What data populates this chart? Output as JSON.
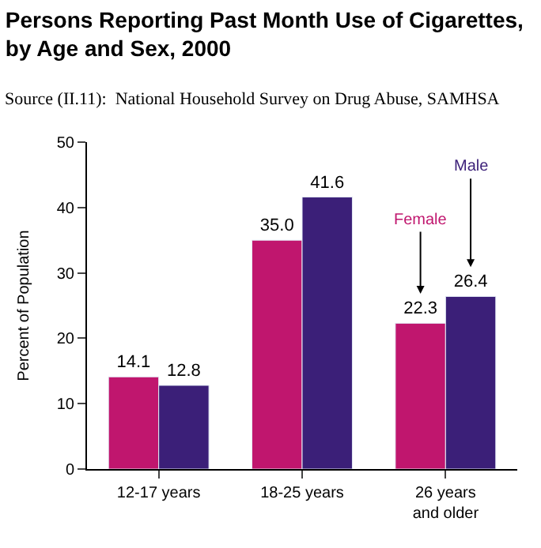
{
  "chart_data": {
    "type": "bar",
    "title": "Persons Reporting Past Month Use of Cigarettes,\nby Age and Sex, 2000",
    "subtitle": "Source (II.11):  National Household Survey on Drug Abuse, SAMHSA",
    "ylabel": "Percent of Population",
    "categories": [
      "12-17 years",
      "18-25 years",
      "26 years\nand older"
    ],
    "series": [
      {
        "name": "Female",
        "color": "#c0166e",
        "values": [
          14.1,
          35.0,
          22.3
        ],
        "value_labels": [
          "14.1",
          "35.0",
          "22.3"
        ]
      },
      {
        "name": "Male",
        "color": "#3b1f78",
        "values": [
          12.8,
          41.6,
          26.4
        ],
        "value_labels": [
          "12.8",
          "41.6",
          "26.4"
        ]
      }
    ],
    "ylim": [
      0,
      50
    ],
    "yticks": [
      0,
      10,
      20,
      30,
      40,
      50
    ],
    "legend": false
  }
}
